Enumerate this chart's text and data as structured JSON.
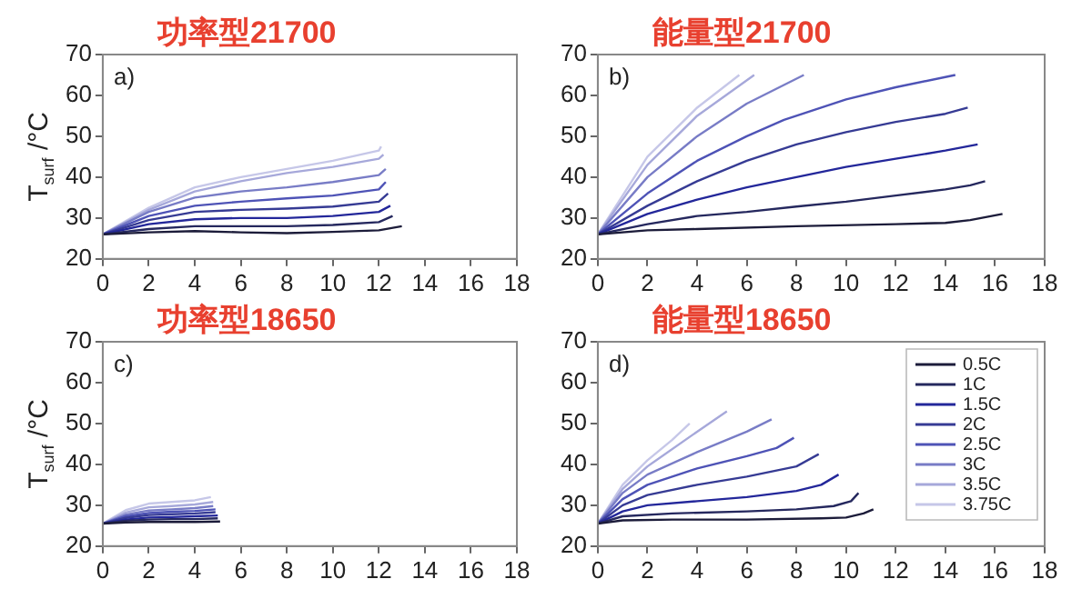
{
  "chart_data": [
    {
      "type": "line",
      "title": "功率型21700",
      "annotations": [
        "a)"
      ],
      "ylabel": "T$_{surf}$ /°C",
      "xlim": [
        0,
        18
      ],
      "xticks": [
        0,
        2,
        4,
        6,
        8,
        10,
        12,
        14,
        16,
        18
      ],
      "ylim": [
        20,
        70
      ],
      "yticks": [
        20,
        30,
        40,
        50,
        60,
        70
      ],
      "grid": false,
      "legend": false,
      "marker": "none",
      "line_style": "solid",
      "series": [
        {
          "color": "#1c1c3a",
          "x": [
            0,
            2,
            4,
            6,
            8,
            10,
            12,
            13
          ],
          "values": [
            26,
            26.5,
            26.8,
            26.5,
            26.3,
            26.6,
            27,
            28
          ]
        },
        {
          "color": "#25285e",
          "x": [
            0,
            2,
            4,
            6,
            8,
            10,
            12,
            12.6
          ],
          "values": [
            26,
            27.3,
            28,
            28,
            28,
            28.3,
            29,
            30.5
          ]
        },
        {
          "color": "#23279a",
          "x": [
            0,
            2,
            4,
            6,
            8,
            10,
            12,
            12.5
          ],
          "values": [
            26,
            28.5,
            29.7,
            30,
            30,
            30.5,
            31.5,
            33
          ]
        },
        {
          "color": "#363b94",
          "x": [
            0,
            2,
            4,
            6,
            8,
            10,
            12,
            12.4
          ],
          "values": [
            26,
            29.5,
            31.5,
            32,
            32.3,
            32.8,
            34,
            36
          ]
        },
        {
          "color": "#4e53b6",
          "x": [
            0,
            2,
            4,
            6,
            8,
            10,
            12,
            12.3
          ],
          "values": [
            26,
            30.5,
            33,
            34,
            34.8,
            35.5,
            37,
            38.8
          ]
        },
        {
          "color": "#787cc6",
          "x": [
            0,
            2,
            4,
            6,
            8,
            10,
            12,
            12.3
          ],
          "values": [
            26,
            31.5,
            35,
            36.5,
            37.5,
            38.8,
            40.5,
            42
          ]
        },
        {
          "color": "#a6a8da",
          "x": [
            0,
            2,
            4,
            6,
            8,
            10,
            12,
            12.2
          ],
          "values": [
            26,
            32,
            36.5,
            39,
            41,
            42.5,
            44.5,
            45.5
          ]
        },
        {
          "color": "#c6c7e8",
          "x": [
            0,
            2,
            4,
            6,
            8,
            10,
            12,
            12.1
          ],
          "values": [
            26,
            32.5,
            37.5,
            40,
            42,
            44,
            46.5,
            47.5
          ]
        }
      ]
    },
    {
      "type": "line",
      "title": "能量型21700",
      "annotations": [
        "b)"
      ],
      "xlim": [
        0,
        18
      ],
      "xticks": [
        0,
        2,
        4,
        6,
        8,
        10,
        12,
        14,
        16,
        18
      ],
      "ylim": [
        20,
        70
      ],
      "yticks": [
        20,
        30,
        40,
        50,
        60,
        70
      ],
      "grid": false,
      "legend": false,
      "marker": "none",
      "line_style": "solid",
      "series": [
        {
          "color": "#1c1c3a",
          "x": [
            0,
            2,
            4,
            8,
            12,
            14,
            15,
            16.3
          ],
          "values": [
            26,
            27,
            27.3,
            28,
            28.5,
            28.8,
            29.5,
            31
          ]
        },
        {
          "color": "#25285e",
          "x": [
            0,
            2,
            4,
            6,
            8,
            10,
            12,
            14,
            15,
            15.6
          ],
          "values": [
            26,
            28.5,
            30.5,
            31.5,
            32.8,
            34,
            35.5,
            37,
            38,
            39
          ]
        },
        {
          "color": "#23279a",
          "x": [
            0,
            2,
            4,
            6,
            8,
            10,
            12,
            14,
            15.3
          ],
          "values": [
            26,
            31,
            34.5,
            37.5,
            40,
            42.5,
            44.5,
            46.5,
            48
          ]
        },
        {
          "color": "#363b94",
          "x": [
            0,
            2,
            4,
            6,
            8,
            10,
            12,
            14,
            14.9
          ],
          "values": [
            26,
            33,
            39,
            44,
            48,
            51,
            53.5,
            55.5,
            57
          ]
        },
        {
          "color": "#4e53b6",
          "x": [
            0,
            2,
            4,
            6,
            7.5,
            9,
            10,
            12,
            14.4
          ],
          "values": [
            26,
            36,
            44,
            50,
            54,
            57,
            59,
            62,
            65
          ]
        },
        {
          "color": "#787cc6",
          "x": [
            0,
            2,
            4,
            6,
            8.3
          ],
          "values": [
            26,
            40,
            50,
            58,
            65
          ]
        },
        {
          "color": "#a6a8da",
          "x": [
            0,
            2,
            4,
            6.3
          ],
          "values": [
            26,
            43,
            55,
            65
          ]
        },
        {
          "color": "#c6c7e8",
          "x": [
            0,
            2,
            4,
            5.7
          ],
          "values": [
            26,
            45,
            57,
            65
          ]
        }
      ]
    },
    {
      "type": "line",
      "title": "功率型18650",
      "annotations": [
        "c)"
      ],
      "ylabel": "T$_{surf}$ /°C",
      "xlim": [
        0,
        18
      ],
      "xticks": [
        0,
        2,
        4,
        6,
        8,
        10,
        12,
        14,
        16,
        18
      ],
      "ylim": [
        20,
        70
      ],
      "yticks": [
        20,
        30,
        40,
        50,
        60,
        70
      ],
      "grid": false,
      "legend": false,
      "marker": "none",
      "line_style": "solid",
      "series": [
        {
          "color": "#1c1c3a",
          "x": [
            0,
            1,
            2,
            3,
            4,
            5.1
          ],
          "values": [
            25.5,
            25.8,
            25.9,
            25.9,
            25.9,
            26
          ]
        },
        {
          "color": "#25285e",
          "x": [
            0,
            1,
            2,
            3,
            4,
            5
          ],
          "values": [
            25.5,
            26.2,
            26.5,
            26.6,
            26.6,
            26.8
          ]
        },
        {
          "color": "#23279a",
          "x": [
            0,
            1,
            2,
            3,
            4,
            5
          ],
          "values": [
            25.5,
            26.5,
            27,
            27.1,
            27.3,
            27.5
          ]
        },
        {
          "color": "#363b94",
          "x": [
            0,
            1,
            2,
            3,
            4,
            4.9
          ],
          "values": [
            25.5,
            26.9,
            27.6,
            27.8,
            28,
            28.3
          ]
        },
        {
          "color": "#4e53b6",
          "x": [
            0,
            1,
            2,
            3,
            4,
            4.9
          ],
          "values": [
            25.5,
            27.3,
            28.1,
            28.4,
            28.6,
            29
          ]
        },
        {
          "color": "#787cc6",
          "x": [
            0,
            1,
            2,
            3,
            4,
            4.8
          ],
          "values": [
            25.5,
            27.7,
            28.7,
            29,
            29.3,
            29.8
          ]
        },
        {
          "color": "#a6a8da",
          "x": [
            0,
            1,
            2,
            3,
            4,
            4.8
          ],
          "values": [
            25.5,
            28.2,
            29.5,
            29.8,
            30.2,
            30.8
          ]
        },
        {
          "color": "#c6c7e8",
          "x": [
            0,
            1,
            2,
            3,
            4,
            4.7
          ],
          "values": [
            25.5,
            28.8,
            30.4,
            30.8,
            31.2,
            32
          ]
        }
      ]
    },
    {
      "type": "line",
      "title": "能量型18650",
      "annotations": [
        "d)"
      ],
      "xlim": [
        0,
        18
      ],
      "xticks": [
        0,
        2,
        4,
        6,
        8,
        10,
        12,
        14,
        16,
        18
      ],
      "ylim": [
        20,
        70
      ],
      "yticks": [
        20,
        30,
        40,
        50,
        60,
        70
      ],
      "grid": false,
      "legend": "top right",
      "marker": "none",
      "line_style": "solid",
      "series": [
        {
          "name": "0.5C",
          "color": "#1c1c3a",
          "x": [
            0,
            1,
            3,
            6,
            9,
            10,
            10.7,
            11.1
          ],
          "values": [
            25.5,
            26.3,
            26.5,
            26.5,
            26.8,
            27,
            28,
            29
          ]
        },
        {
          "name": "1C",
          "color": "#25285e",
          "x": [
            0,
            1,
            3,
            6,
            8,
            9.5,
            10.2,
            10.5
          ],
          "values": [
            25.5,
            27.3,
            28,
            28.5,
            29,
            29.8,
            31,
            33
          ]
        },
        {
          "name": "1.5C",
          "color": "#23279a",
          "x": [
            0,
            1,
            2,
            4,
            6,
            8,
            9,
            9.7
          ],
          "values": [
            25.5,
            28.5,
            30,
            31,
            32,
            33.5,
            35,
            37.5
          ]
        },
        {
          "name": "2C",
          "color": "#363b94",
          "x": [
            0,
            1,
            2,
            4,
            6,
            8,
            8.9
          ],
          "values": [
            25.5,
            30,
            32.5,
            35,
            37,
            39.5,
            42.5
          ]
        },
        {
          "name": "2.5C",
          "color": "#4e53b6",
          "x": [
            0,
            1,
            2,
            4,
            6,
            7.2,
            7.9
          ],
          "values": [
            25.5,
            31.5,
            35,
            39,
            42,
            44,
            46.5
          ]
        },
        {
          "name": "3C",
          "color": "#787cc6",
          "x": [
            0,
            1,
            2,
            4,
            6,
            7
          ],
          "values": [
            25.5,
            33,
            37.5,
            43,
            48,
            51
          ]
        },
        {
          "name": "3.5C",
          "color": "#a6a8da",
          "x": [
            0,
            1,
            2,
            4,
            5.2
          ],
          "values": [
            25.5,
            34,
            39.5,
            48,
            53
          ]
        },
        {
          "name": "3.75C",
          "color": "#c6c7e8",
          "x": [
            0,
            1,
            2,
            3,
            3.7
          ],
          "values": [
            25.5,
            35,
            41,
            46,
            50
          ]
        }
      ]
    }
  ]
}
